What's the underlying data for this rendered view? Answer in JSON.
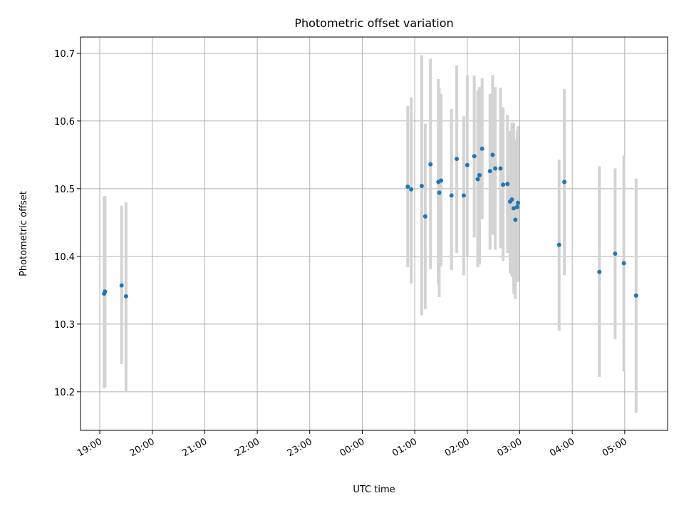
{
  "chart_data": {
    "type": "scatter",
    "title": "Photometric offset variation",
    "xlabel": "UTC time",
    "ylabel": "Photometric offset",
    "x_format": "time HH:MM (hours since 19:00)",
    "xlim": [
      "18:38",
      "05:49"
    ],
    "ylim": [
      10.143,
      10.724
    ],
    "grid": true,
    "x_ticks": [
      "19:00",
      "20:00",
      "21:00",
      "22:00",
      "23:00",
      "00:00",
      "01:00",
      "02:00",
      "03:00",
      "04:00",
      "05:00"
    ],
    "y_ticks": [
      "10.2",
      "10.3",
      "10.4",
      "10.5",
      "10.6",
      "10.7"
    ],
    "colors": {
      "marker": "#1f77b4",
      "errorbar": "#d3d3d3",
      "grid": "#b0b0b0"
    },
    "series": [
      {
        "points": [
          {
            "x": "19:05",
            "y": 10.345,
            "err_low": 10.205,
            "err_high": 10.488
          },
          {
            "x": "19:06",
            "y": 10.348,
            "err_low": 10.207,
            "err_high": 10.489
          },
          {
            "x": "19:25",
            "y": 10.357,
            "err_low": 10.241,
            "err_high": 10.475
          },
          {
            "x": "19:30",
            "y": 10.341,
            "err_low": 10.2,
            "err_high": 10.48
          },
          {
            "x": "00:52",
            "y": 10.503,
            "err_low": 10.384,
            "err_high": 10.622
          },
          {
            "x": "00:56",
            "y": 10.499,
            "err_low": 10.36,
            "err_high": 10.635
          },
          {
            "x": "01:08",
            "y": 10.504,
            "err_low": 10.313,
            "err_high": 10.697
          },
          {
            "x": "01:12",
            "y": 10.459,
            "err_low": 10.322,
            "err_high": 10.596
          },
          {
            "x": "01:18",
            "y": 10.536,
            "err_low": 10.381,
            "err_high": 10.692
          },
          {
            "x": "01:27",
            "y": 10.51,
            "err_low": 10.358,
            "err_high": 10.662
          },
          {
            "x": "01:28",
            "y": 10.494,
            "err_low": 10.34,
            "err_high": 10.648
          },
          {
            "x": "01:30",
            "y": 10.512,
            "err_low": 10.385,
            "err_high": 10.64
          },
          {
            "x": "01:42",
            "y": 10.49,
            "err_low": 10.38,
            "err_high": 10.618
          },
          {
            "x": "01:48",
            "y": 10.544,
            "err_low": 10.405,
            "err_high": 10.682
          },
          {
            "x": "01:56",
            "y": 10.49,
            "err_low": 10.372,
            "err_high": 10.607
          },
          {
            "x": "02:00",
            "y": 10.535,
            "err_low": 10.401,
            "err_high": 10.668
          },
          {
            "x": "02:08",
            "y": 10.548,
            "err_low": 10.428,
            "err_high": 10.667
          },
          {
            "x": "02:12",
            "y": 10.514,
            "err_low": 10.384,
            "err_high": 10.645
          },
          {
            "x": "02:14",
            "y": 10.52,
            "err_low": 10.388,
            "err_high": 10.65
          },
          {
            "x": "02:17",
            "y": 10.559,
            "err_low": 10.455,
            "err_high": 10.663
          },
          {
            "x": "02:26",
            "y": 10.526,
            "err_low": 10.41,
            "err_high": 10.64
          },
          {
            "x": "02:29",
            "y": 10.55,
            "err_low": 10.432,
            "err_high": 10.668
          },
          {
            "x": "02:32",
            "y": 10.53,
            "err_low": 10.41,
            "err_high": 10.65
          },
          {
            "x": "02:38",
            "y": 10.53,
            "err_low": 10.412,
            "err_high": 10.649
          },
          {
            "x": "02:41",
            "y": 10.506,
            "err_low": 10.393,
            "err_high": 10.62
          },
          {
            "x": "02:46",
            "y": 10.507,
            "err_low": 10.405,
            "err_high": 10.609
          },
          {
            "x": "02:49",
            "y": 10.481,
            "err_low": 10.375,
            "err_high": 10.585
          },
          {
            "x": "02:51",
            "y": 10.484,
            "err_low": 10.37,
            "err_high": 10.598
          },
          {
            "x": "02:53",
            "y": 10.471,
            "err_low": 10.345,
            "err_high": 10.597
          },
          {
            "x": "02:55",
            "y": 10.454,
            "err_low": 10.337,
            "err_high": 10.573
          },
          {
            "x": "02:57",
            "y": 10.473,
            "err_low": 10.362,
            "err_high": 10.585
          },
          {
            "x": "02:58",
            "y": 10.479,
            "err_low": 10.362,
            "err_high": 10.592
          },
          {
            "x": "03:45",
            "y": 10.417,
            "err_low": 10.29,
            "err_high": 10.543
          },
          {
            "x": "03:51",
            "y": 10.51,
            "err_low": 10.372,
            "err_high": 10.647
          },
          {
            "x": "04:31",
            "y": 10.377,
            "err_low": 10.222,
            "err_high": 10.533
          },
          {
            "x": "04:49",
            "y": 10.404,
            "err_low": 10.278,
            "err_high": 10.53
          },
          {
            "x": "04:59",
            "y": 10.39,
            "err_low": 10.23,
            "err_high": 10.549
          },
          {
            "x": "05:13",
            "y": 10.342,
            "err_low": 10.169,
            "err_high": 10.515
          }
        ]
      }
    ]
  }
}
